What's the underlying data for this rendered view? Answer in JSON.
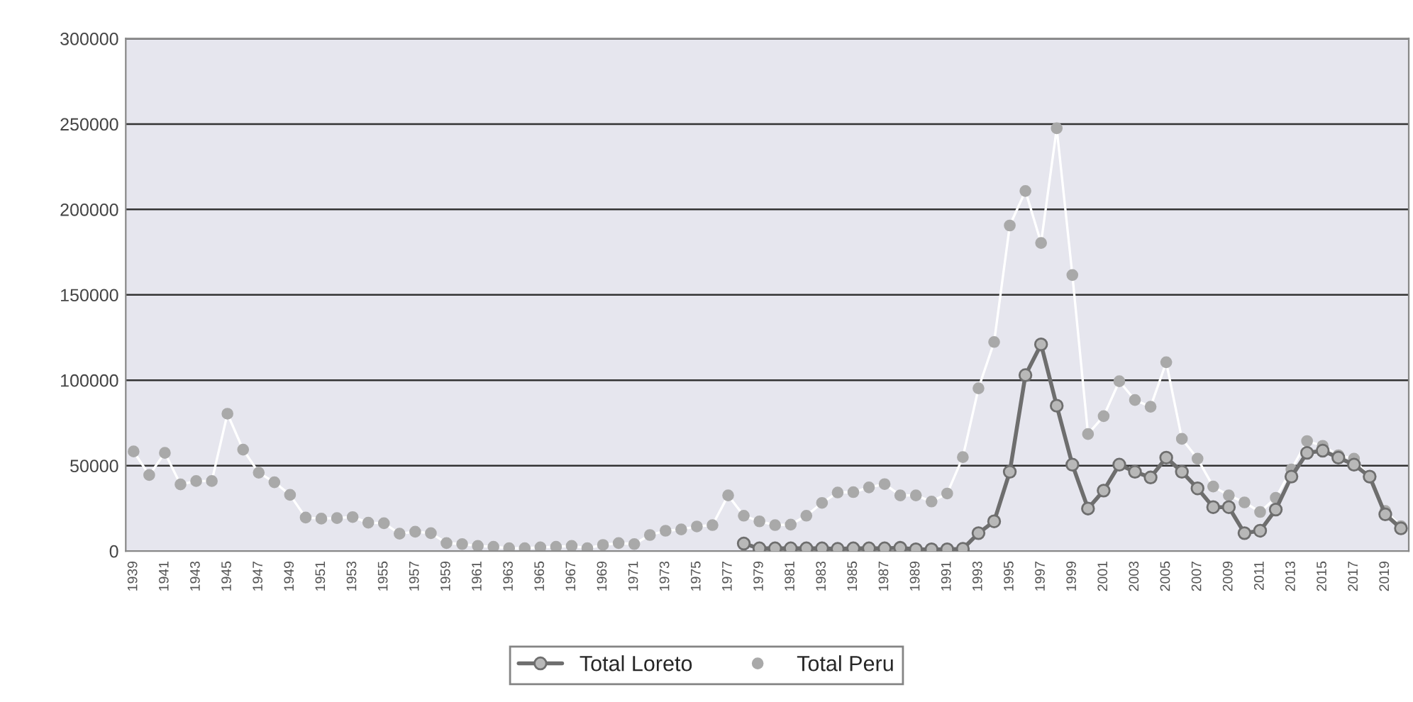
{
  "chart_data": {
    "type": "line",
    "categories": [
      "1939",
      null,
      "1941",
      null,
      "1943",
      null,
      "1945",
      null,
      "1947",
      null,
      "1949",
      null,
      "1951",
      null,
      "1953",
      null,
      "1955",
      null,
      "1957",
      null,
      "1959",
      null,
      "1961",
      null,
      "1963",
      null,
      "1965",
      null,
      "1967",
      null,
      "1969",
      null,
      "1971",
      null,
      "1973",
      null,
      "1975",
      null,
      "1977",
      null,
      "1979",
      null,
      "1981",
      null,
      "1983",
      null,
      "1985",
      null,
      "1987",
      null,
      "1989",
      null,
      "1991",
      null,
      "1993",
      null,
      "1995",
      null,
      "1997",
      null,
      "1999",
      null,
      "2001",
      null,
      "2003",
      null,
      "2005",
      null,
      "2007",
      null,
      "2009",
      null,
      "2011",
      null,
      "2013",
      null,
      "2015",
      null,
      "2017",
      null,
      "2019",
      null
    ],
    "series": [
      {
        "name": "Total Loreto",
        "color": "#6e6e6e",
        "values": [
          null,
          null,
          null,
          null,
          null,
          null,
          null,
          null,
          null,
          null,
          null,
          null,
          null,
          null,
          null,
          null,
          null,
          null,
          null,
          null,
          null,
          null,
          null,
          null,
          null,
          null,
          null,
          null,
          null,
          null,
          null,
          null,
          null,
          null,
          null,
          null,
          null,
          null,
          null,
          4400,
          1600,
          1600,
          1600,
          1600,
          1600,
          1300,
          1600,
          1600,
          1600,
          1900,
          1000,
          1000,
          1000,
          1300,
          10500,
          17400,
          46400,
          103000,
          121000,
          85100,
          50600,
          24900,
          35400,
          50600,
          46400,
          43100,
          54700,
          46400,
          36700,
          25700,
          25700,
          10500,
          11900,
          24300,
          43600,
          57500,
          58800,
          54700,
          50600,
          43600,
          21500,
          13300
        ]
      },
      {
        "name": "Total Peru",
        "color": "#a9a9a9",
        "values": [
          58300,
          44500,
          57500,
          39000,
          41000,
          41000,
          80400,
          59400,
          45900,
          40300,
          32900,
          19600,
          19000,
          19300,
          19900,
          16600,
          16300,
          10200,
          11300,
          10500,
          4700,
          4100,
          3000,
          2500,
          1700,
          1700,
          2200,
          2500,
          3000,
          1700,
          3600,
          4700,
          4100,
          9400,
          11900,
          12700,
          14400,
          15200,
          32600,
          20700,
          17400,
          15200,
          15500,
          20700,
          28200,
          34300,
          34500,
          37300,
          39200,
          32600,
          32600,
          29000,
          33700,
          55000,
          95300,
          122400,
          190600,
          210800,
          180400,
          247500,
          161600,
          68500,
          79000,
          99400,
          88400,
          84500,
          110500,
          65700,
          54100,
          37800,
          32600,
          28500,
          22900,
          31200,
          47800,
          64400,
          61600,
          56100,
          54100,
          43100,
          23500,
          14600
        ]
      }
    ],
    "ylim": [
      0,
      300000
    ],
    "yticks": [
      0,
      50000,
      100000,
      150000,
      200000,
      250000,
      300000
    ],
    "grid": "y",
    "legend": "bottom",
    "marker": "circle",
    "line_style": "solid"
  }
}
